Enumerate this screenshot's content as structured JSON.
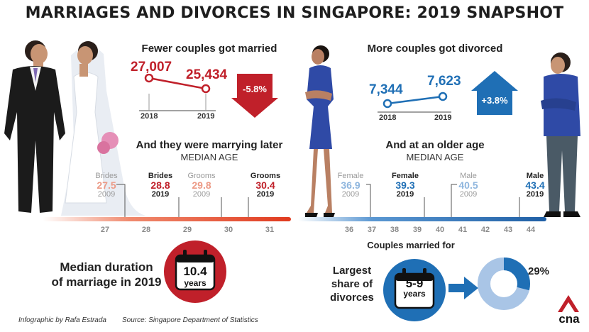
{
  "title": "MARRIAGES AND DIVORCES IN SINGAPORE: 2019 SNAPSHOT",
  "marriages": {
    "heading": "Fewer couples got married",
    "value_2018": "27,007",
    "value_2019": "25,434",
    "year_2018": "2018",
    "year_2019": "2019",
    "change": "-5.8%"
  },
  "divorces": {
    "heading": "More couples got divorced",
    "value_2018": "7,344",
    "value_2019": "7,623",
    "year_2018": "2018",
    "year_2019": "2019",
    "change": "+3.8%"
  },
  "marriage_age": {
    "heading": "And they were marrying later",
    "subheading": "MEDIAN AGE",
    "labels": [
      {
        "name": "Brides",
        "value": "27.5",
        "year": "2009"
      },
      {
        "name": "Brides",
        "value": "28.8",
        "year": "2019"
      },
      {
        "name": "Grooms",
        "value": "29.8",
        "year": "2009"
      },
      {
        "name": "Grooms",
        "value": "30.4",
        "year": "2019"
      }
    ],
    "ticks": [
      "27",
      "28",
      "29",
      "30",
      "31"
    ]
  },
  "divorce_age": {
    "heading": "And at an older age",
    "subheading": "MEDIAN AGE",
    "labels": [
      {
        "name": "Female",
        "value": "36.9",
        "year": "2009"
      },
      {
        "name": "Female",
        "value": "39.3",
        "year": "2019"
      },
      {
        "name": "Male",
        "value": "40.5",
        "year": "2009"
      },
      {
        "name": "Male",
        "value": "43.4",
        "year": "2019"
      }
    ],
    "ticks": [
      "36",
      "37",
      "38",
      "39",
      "40",
      "41",
      "42",
      "43",
      "44"
    ]
  },
  "duration": {
    "line1": "Median duration",
    "line2": "of marriage in 2019",
    "value": "10.4",
    "unit": "years"
  },
  "divorce_share": {
    "heading": "Couples married for",
    "label_line1": "Largest",
    "label_line2": "share of",
    "label_line3": "divorces",
    "range": "5-9",
    "unit": "years",
    "percent_label": "29%",
    "percent": 29
  },
  "footer": {
    "credit": "Infographic by Rafa Estrada",
    "source": "Source: Singapore Department of Statistics"
  },
  "logo": "cna",
  "colors": {
    "red": "#c0202a",
    "blue": "#1f6fb5",
    "light_blue": "#a9c5e6"
  }
}
